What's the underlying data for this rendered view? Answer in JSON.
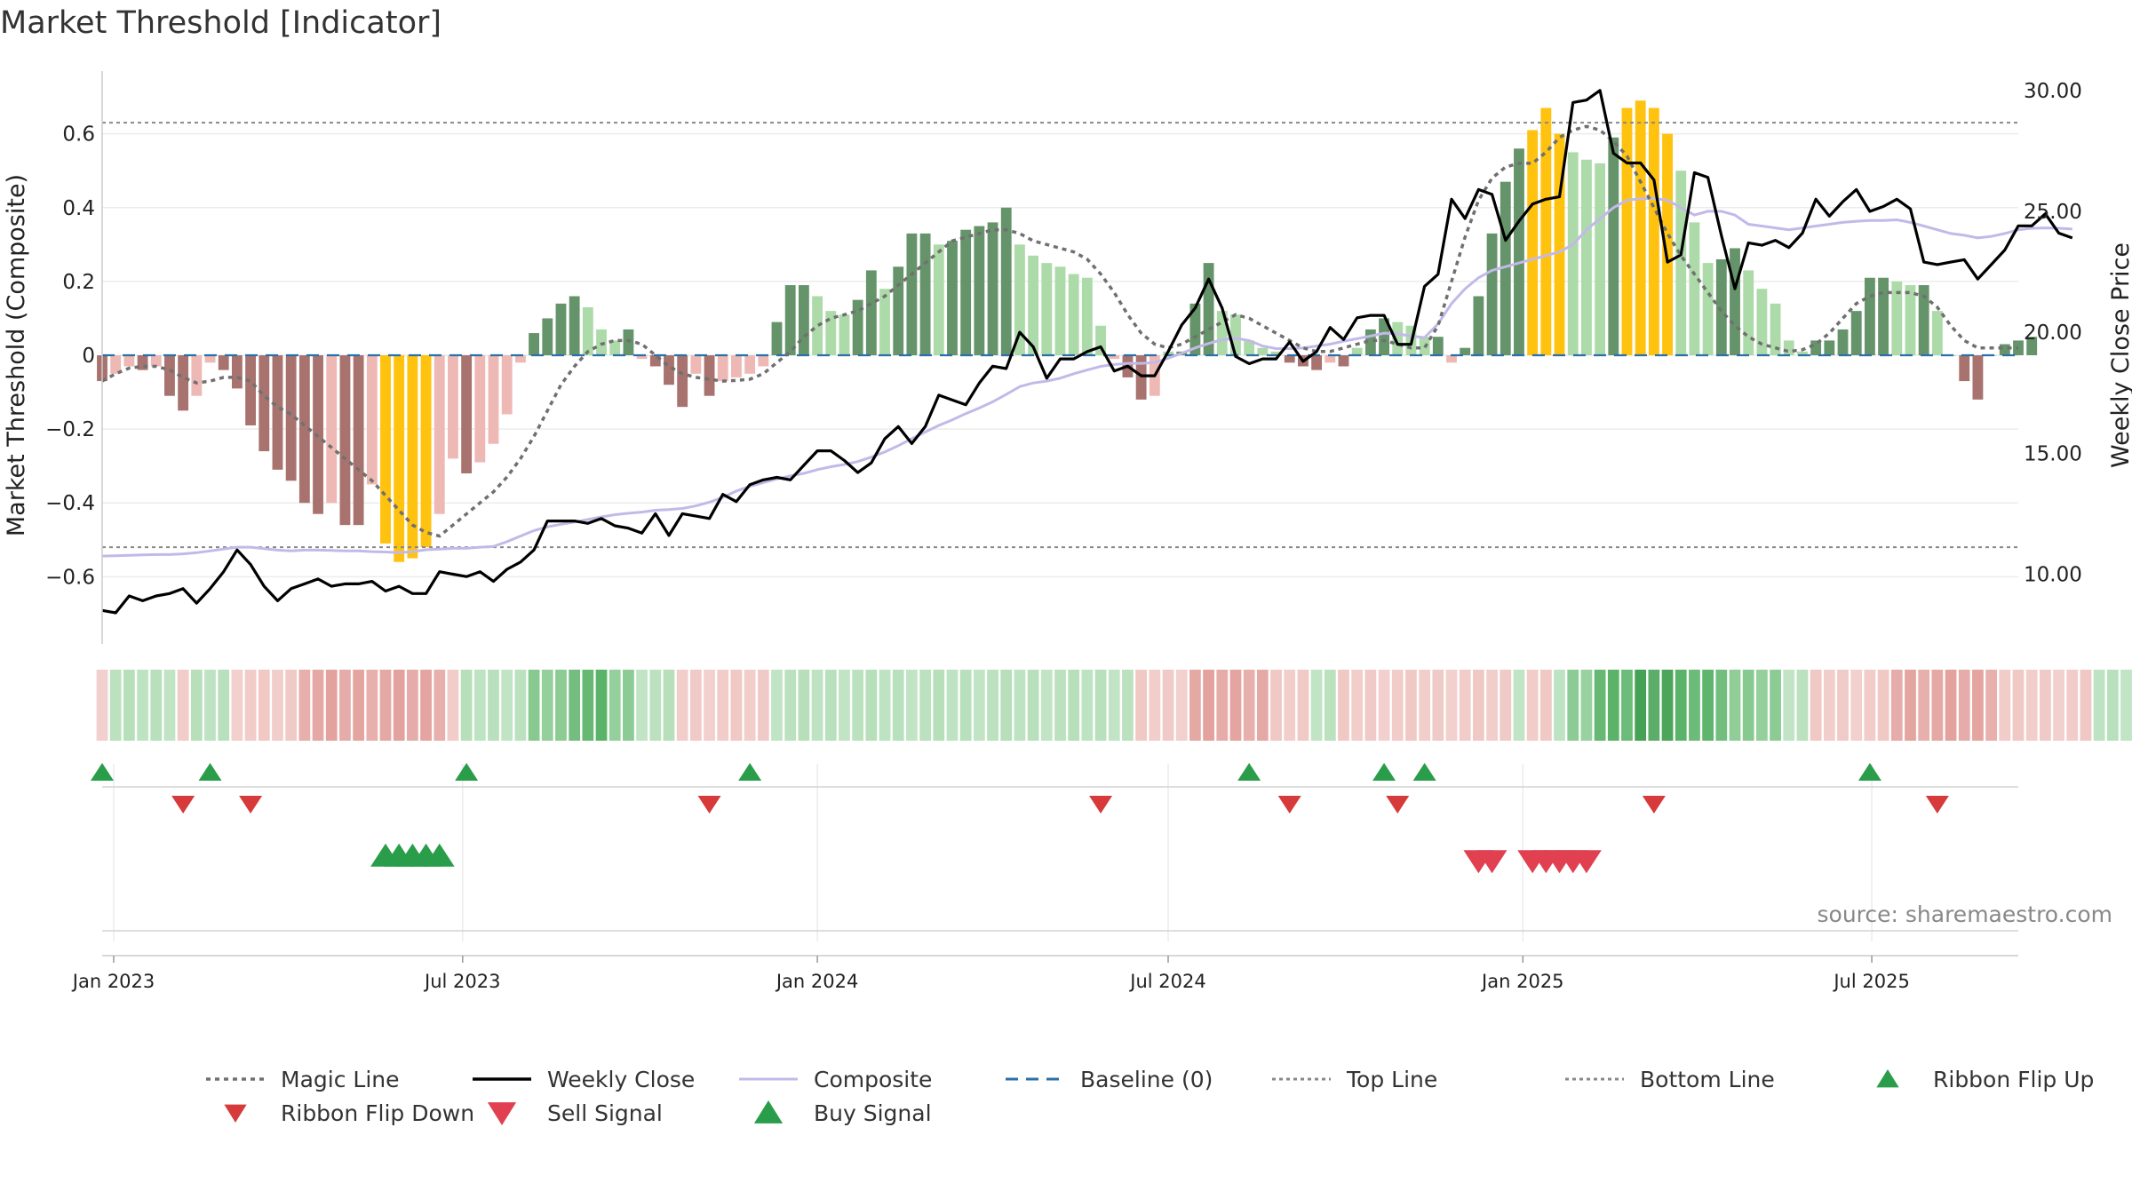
{
  "title": "Market Threshold [Indicator]",
  "source_note": "source: sharemaestro.com",
  "colors": {
    "bar_dark_green": "#66946a",
    "bar_light_green": "#addaa9",
    "bar_dark_red": "#a8736f",
    "bar_light_red": "#eeb9b4",
    "bar_extreme": "#ffc20e",
    "weekly_close": "#000000",
    "composite": "#c3b9e8",
    "magic_line": "#707070",
    "baseline": "#2a6fa8",
    "threshold_lines": "#888888",
    "ribbon_flip_up": "#2a9d4a",
    "ribbon_flip_down": "#d63a3a",
    "sell_signal": "#e04050",
    "buy_signal": "#2a9d4a"
  },
  "legend": [
    {
      "label": "Magic Line",
      "icon": "dotted-line-icon"
    },
    {
      "label": "Weekly Close",
      "icon": "solid-line-icon"
    },
    {
      "label": "Composite",
      "icon": "solid-line-icon"
    },
    {
      "label": "Baseline (0)",
      "icon": "dashed-line-icon"
    },
    {
      "label": "Top Line",
      "icon": "dotted-line-icon"
    },
    {
      "label": "Bottom Line",
      "icon": "dotted-line-icon"
    },
    {
      "label": "Ribbon Flip Up",
      "icon": "triangle-up-icon"
    },
    {
      "label": "Ribbon Flip Down",
      "icon": "triangle-down-icon"
    },
    {
      "label": "Sell Signal",
      "icon": "triangle-down-icon"
    },
    {
      "label": "Buy Signal",
      "icon": "triangle-up-icon"
    }
  ],
  "chart_data": {
    "type": "bar",
    "x_axis": {
      "type": "date",
      "range": [
        "2022-12-26",
        "2025-09-15"
      ],
      "ticks": [
        {
          "date": "2023-01-01",
          "label": "Jan 2023"
        },
        {
          "date": "2023-07-01",
          "label": "Jul 2023"
        },
        {
          "date": "2024-01-01",
          "label": "Jan 2024"
        },
        {
          "date": "2024-07-01",
          "label": "Jul 2024"
        },
        {
          "date": "2025-01-01",
          "label": "Jan 2025"
        },
        {
          "date": "2025-07-01",
          "label": "Jul 2025"
        }
      ]
    },
    "y_left": {
      "label": "Market Threshold (Composite)",
      "range": [
        -0.77,
        0.77
      ],
      "ticks": [
        {
          "v": 0.6,
          "label": "0.6"
        },
        {
          "v": 0.4,
          "label": "0.4"
        },
        {
          "v": 0.2,
          "label": "0.2"
        },
        {
          "v": 0,
          "label": "0"
        },
        {
          "v": -0.2,
          "label": "−0.2"
        },
        {
          "v": -0.4,
          "label": "−0.4"
        },
        {
          "v": -0.6,
          "label": "−0.6"
        }
      ]
    },
    "y_right": {
      "label": "Weekly Close Price",
      "range": [
        7.3,
        30.8
      ],
      "ticks": [
        {
          "v": 30,
          "label": "30.00"
        },
        {
          "v": 25,
          "label": "25.00"
        },
        {
          "v": 20,
          "label": "20.00"
        },
        {
          "v": 15,
          "label": "15.00"
        },
        {
          "v": 10,
          "label": "10.00"
        }
      ]
    },
    "top_line": 0.63,
    "bottom_line": -0.52,
    "baseline": 0,
    "composite_bars": [
      -0.07,
      -0.05,
      -0.03,
      -0.04,
      -0.03,
      -0.11,
      -0.15,
      -0.11,
      -0.02,
      -0.04,
      -0.09,
      -0.19,
      -0.26,
      -0.31,
      -0.34,
      -0.4,
      -0.43,
      -0.4,
      -0.46,
      -0.46,
      -0.35,
      -0.51,
      -0.56,
      -0.55,
      -0.52,
      -0.43,
      -0.28,
      -0.32,
      -0.29,
      -0.24,
      -0.16,
      -0.02,
      0.06,
      0.1,
      0.14,
      0.16,
      0.13,
      0.07,
      0.04,
      0.07,
      -0.01,
      -0.03,
      -0.08,
      -0.14,
      -0.05,
      -0.11,
      -0.07,
      -0.06,
      -0.05,
      -0.03,
      0.09,
      0.19,
      0.19,
      0.16,
      0.12,
      0.11,
      0.15,
      0.23,
      0.18,
      0.24,
      0.33,
      0.33,
      0.3,
      0.31,
      0.34,
      0.35,
      0.36,
      0.4,
      0.3,
      0.27,
      0.25,
      0.24,
      0.22,
      0.21,
      0.08,
      -0.01,
      -0.06,
      -0.12,
      -0.11,
      0.01,
      0.01,
      0.14,
      0.25,
      0.12,
      0.11,
      0.04,
      0.02,
      0.01,
      -0.02,
      -0.03,
      -0.04,
      -0.02,
      -0.03,
      0.02,
      0.07,
      0.1,
      0.09,
      0.08,
      0.05,
      0.05,
      -0.02,
      0.02,
      0.16,
      0.33,
      0.47,
      0.56,
      0.61,
      0.67,
      0.6,
      0.55,
      0.53,
      0.52,
      0.59,
      0.67,
      0.69,
      0.67,
      0.6,
      0.5,
      0.36,
      0.25,
      0.26,
      0.29,
      0.23,
      0.18,
      0.14,
      0.04,
      0.01,
      0.04,
      0.04,
      0.07,
      0.12,
      0.21,
      0.21,
      0.2,
      0.19,
      0.19,
      0.12,
      0.0,
      -0.07,
      -0.12,
      0.0,
      0.03,
      0.04,
      0.05
    ],
    "weekly_close": [
      8.5,
      8.4,
      9.1,
      8.9,
      9.1,
      9.2,
      9.4,
      8.8,
      9.4,
      10.1,
      11.0,
      10.4,
      9.5,
      8.9,
      9.4,
      9.6,
      9.8,
      9.5,
      9.6,
      9.6,
      9.7,
      9.3,
      9.5,
      9.2,
      9.2,
      10.1,
      10.0,
      9.9,
      10.1,
      9.7,
      10.2,
      10.5,
      11.0,
      12.2,
      12.2,
      12.2,
      12.1,
      12.3,
      12.0,
      11.9,
      11.7,
      12.5,
      11.6,
      12.5,
      12.4,
      12.3,
      13.3,
      13.0,
      13.7,
      13.9,
      14.0,
      13.9,
      14.5,
      15.1,
      15.1,
      14.7,
      14.2,
      14.6,
      15.6,
      16.1,
      15.4,
      16.1,
      17.4,
      17.2,
      17.0,
      17.9,
      18.6,
      18.5,
      20.0,
      19.4,
      18.1,
      18.9,
      18.9,
      19.2,
      19.4,
      18.4,
      18.6,
      18.2,
      18.2,
      19.2,
      20.3,
      21.0,
      22.2,
      21.0,
      19.0,
      18.7,
      18.9,
      18.9,
      19.6,
      18.8,
      19.2,
      20.2,
      19.7,
      20.6,
      20.7,
      20.7,
      19.5,
      19.5,
      21.9,
      22.4,
      25.5,
      24.7,
      25.9,
      25.7,
      23.8,
      24.6,
      25.3,
      25.5,
      25.6,
      29.5,
      29.6,
      30.0,
      27.4,
      27.0,
      27.0,
      26.3,
      22.9,
      23.2,
      26.6,
      26.4,
      24.0,
      21.8,
      23.7,
      23.6,
      23.8,
      23.5,
      24.1,
      25.5,
      24.8,
      25.4,
      25.9,
      25.0,
      25.2,
      25.5,
      25.1,
      22.9,
      22.8,
      22.9,
      23.0,
      22.2,
      22.8,
      23.4,
      24.4,
      24.4,
      24.9,
      24.1,
      23.9
    ],
    "composite_line": [
      -0.544,
      -0.543,
      -0.542,
      -0.541,
      -0.54,
      -0.54,
      -0.538,
      -0.535,
      -0.53,
      -0.525,
      -0.52,
      -0.52,
      -0.524,
      -0.528,
      -0.53,
      -0.528,
      -0.528,
      -0.529,
      -0.53,
      -0.53,
      -0.532,
      -0.533,
      -0.535,
      -0.532,
      -0.527,
      -0.525,
      -0.523,
      -0.523,
      -0.52,
      -0.518,
      -0.505,
      -0.49,
      -0.475,
      -0.465,
      -0.458,
      -0.452,
      -0.445,
      -0.438,
      -0.432,
      -0.428,
      -0.425,
      -0.42,
      -0.418,
      -0.415,
      -0.408,
      -0.398,
      -0.385,
      -0.368,
      -0.355,
      -0.345,
      -0.335,
      -0.327,
      -0.32,
      -0.31,
      -0.302,
      -0.296,
      -0.288,
      -0.276,
      -0.262,
      -0.245,
      -0.226,
      -0.208,
      -0.19,
      -0.175,
      -0.158,
      -0.143,
      -0.126,
      -0.106,
      -0.085,
      -0.075,
      -0.07,
      -0.062,
      -0.05,
      -0.04,
      -0.03,
      -0.025,
      -0.022,
      -0.022,
      -0.02,
      -0.008,
      0.005,
      0.02,
      0.032,
      0.042,
      0.046,
      0.04,
      0.025,
      0.018,
      0.018,
      0.02,
      0.025,
      0.03,
      0.038,
      0.045,
      0.052,
      0.06,
      0.058,
      0.052,
      0.048,
      0.085,
      0.14,
      0.18,
      0.21,
      0.23,
      0.24,
      0.25,
      0.26,
      0.27,
      0.28,
      0.3,
      0.34,
      0.37,
      0.4,
      0.42,
      0.424,
      0.425,
      0.42,
      0.4,
      0.38,
      0.39,
      0.39,
      0.38,
      0.355,
      0.35,
      0.345,
      0.34,
      0.345,
      0.35,
      0.355,
      0.36,
      0.363,
      0.365,
      0.365,
      0.367,
      0.36,
      0.35,
      0.34,
      0.33,
      0.325,
      0.318,
      0.322,
      0.33,
      0.34,
      0.344,
      0.345,
      0.344,
      0.342
    ],
    "magic_line": [
      -0.07,
      -0.05,
      -0.035,
      -0.03,
      -0.03,
      -0.04,
      -0.06,
      -0.075,
      -0.07,
      -0.06,
      -0.06,
      -0.07,
      -0.11,
      -0.14,
      -0.16,
      -0.19,
      -0.22,
      -0.25,
      -0.28,
      -0.31,
      -0.34,
      -0.38,
      -0.42,
      -0.46,
      -0.48,
      -0.49,
      -0.46,
      -0.43,
      -0.4,
      -0.37,
      -0.33,
      -0.28,
      -0.22,
      -0.15,
      -0.08,
      -0.03,
      0.01,
      0.03,
      0.04,
      0.04,
      0.03,
      0.0,
      -0.03,
      -0.05,
      -0.06,
      -0.065,
      -0.07,
      -0.068,
      -0.065,
      -0.05,
      -0.02,
      0.01,
      0.05,
      0.08,
      0.1,
      0.11,
      0.12,
      0.14,
      0.16,
      0.19,
      0.22,
      0.25,
      0.28,
      0.31,
      0.32,
      0.33,
      0.34,
      0.34,
      0.33,
      0.31,
      0.3,
      0.29,
      0.28,
      0.26,
      0.22,
      0.17,
      0.11,
      0.06,
      0.03,
      0.02,
      0.03,
      0.05,
      0.07,
      0.09,
      0.11,
      0.1,
      0.08,
      0.06,
      0.04,
      0.02,
      0.01,
      0.01,
      0.02,
      0.03,
      0.04,
      0.04,
      0.03,
      0.02,
      0.02,
      0.08,
      0.2,
      0.32,
      0.42,
      0.48,
      0.51,
      0.52,
      0.52,
      0.55,
      0.59,
      0.61,
      0.62,
      0.61,
      0.58,
      0.54,
      0.47,
      0.4,
      0.33,
      0.27,
      0.22,
      0.17,
      0.12,
      0.08,
      0.05,
      0.03,
      0.02,
      0.01,
      0.015,
      0.03,
      0.06,
      0.1,
      0.14,
      0.16,
      0.17,
      0.17,
      0.17,
      0.16,
      0.13,
      0.08,
      0.04,
      0.02,
      0.02,
      0.02,
      0.02
    ],
    "ribbon": [
      -1,
      1,
      1,
      1,
      1,
      1,
      -1,
      1,
      1,
      1,
      -1,
      -1,
      -1,
      -1,
      -1,
      -2,
      -2,
      -2,
      -2,
      -2,
      -2,
      -2,
      -2,
      -2,
      -2,
      -2,
      -1,
      1,
      1,
      1,
      1,
      1,
      2,
      2,
      2,
      3,
      3,
      3,
      2,
      2,
      1,
      1,
      1,
      -1,
      -1,
      -1,
      -1,
      -1,
      -1,
      -1,
      1,
      1,
      1,
      1,
      1,
      1,
      1,
      1,
      1,
      1,
      1,
      1,
      1,
      1,
      1,
      1,
      1,
      1,
      1,
      1,
      1,
      1,
      1,
      1,
      1,
      1,
      1,
      -1,
      -1,
      -1,
      -1,
      -2,
      -2,
      -2,
      -2,
      -2,
      -2,
      -1,
      -1,
      -1,
      1,
      1,
      -1,
      -1,
      -1,
      -1,
      -1,
      -1,
      -1,
      -1,
      -1,
      -1,
      -1,
      -1,
      -1,
      1,
      -1,
      -1,
      1,
      2,
      2,
      3,
      3,
      3,
      4,
      4,
      4,
      3,
      3,
      3,
      3,
      2,
      2,
      2,
      2,
      1,
      1,
      -1,
      -1,
      -1,
      -1,
      -1,
      -1,
      -2,
      -2,
      -2,
      -2,
      -2,
      -2,
      -2,
      -2,
      -1,
      -1,
      -1,
      -1,
      -1,
      -1,
      -1,
      1,
      1,
      1,
      -1,
      -1,
      -1,
      -1,
      -1,
      -1,
      -1,
      -1,
      -1
    ],
    "ribbon_flip_up": [
      "2022-12-26",
      "2023-02-20",
      "2023-07-03",
      "2023-11-27",
      "2024-08-12",
      "2024-10-21",
      "2024-11-11",
      "2025-06-30"
    ],
    "ribbon_flip_down": [
      "2023-02-06",
      "2023-03-13",
      "2023-11-06",
      "2024-05-27",
      "2024-09-02",
      "2024-10-28",
      "2025-03-10",
      "2025-08-04"
    ],
    "buy_signal": [
      "2023-05-22",
      "2023-05-29",
      "2023-06-05",
      "2023-06-12",
      "2023-06-19"
    ],
    "sell_signal": [
      "2024-12-09",
      "2024-12-16",
      "2025-01-06",
      "2025-01-13",
      "2025-01-20",
      "2025-01-27",
      "2025-02-03"
    ]
  }
}
